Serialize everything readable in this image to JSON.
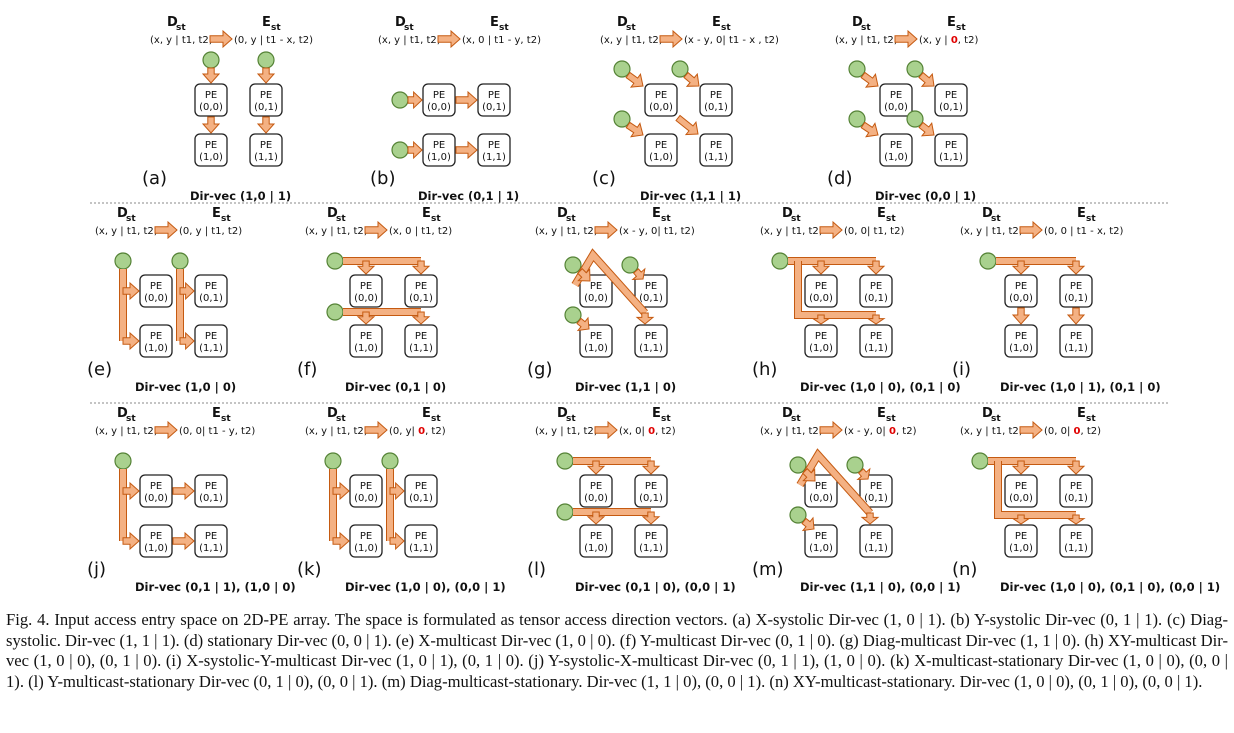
{
  "figure": {
    "labels": {
      "D": "D",
      "E": "E",
      "sub": "st",
      "pe": "PE"
    },
    "panels": [
      {
        "id": "a",
        "letter": "(a)",
        "d_formula": "(x, y | t1, t2)",
        "e_formula": "(0, y | t1 - x, t2)",
        "e_red": "",
        "e_tail": "",
        "dirvec": "Dir-vec (1,0 | 1)",
        "pe": [
          "(0,0)",
          "(0,1)",
          "(1,0)",
          "(1,1)"
        ]
      },
      {
        "id": "b",
        "letter": "(b)",
        "d_formula": "(x, y | t1, t2)",
        "e_formula": "(x, 0 | t1 - y, t2)",
        "e_red": "",
        "e_tail": "",
        "dirvec": "Dir-vec (0,1 | 1)",
        "pe": [
          "(0,0)",
          "(0,1)",
          "(1,0)",
          "(1,1)"
        ]
      },
      {
        "id": "c",
        "letter": "(c)",
        "d_formula": "(x, y | t1, t2)",
        "e_formula": "(x - y, 0| t1 - x , t2)",
        "e_red": "",
        "e_tail": "",
        "dirvec": "Dir-vec (1,1 | 1)",
        "pe": [
          "(0,0)",
          "(0,1)",
          "(1,0)",
          "(1,1)"
        ]
      },
      {
        "id": "d",
        "letter": "(d)",
        "d_formula": "(x, y | t1, t2)",
        "e_formula": "(x, y | ",
        "e_red": "0",
        "e_tail": ", t2)",
        "dirvec": "Dir-vec (0,0 | 1)",
        "pe": [
          "(0,0)",
          "(0,1)",
          "(1,0)",
          "(1,1)"
        ]
      },
      {
        "id": "e",
        "letter": "(e)",
        "d_formula": "(x, y | t1, t2)",
        "e_formula": "(0, y | t1, t2)",
        "e_red": "",
        "e_tail": "",
        "dirvec": "Dir-vec (1,0 | 0)",
        "pe": [
          "(0,0)",
          "(0,1)",
          "(1,0)",
          "(1,1)"
        ]
      },
      {
        "id": "f",
        "letter": "(f)",
        "d_formula": "(x, y | t1, t2)",
        "e_formula": "(x, 0 | t1, t2)",
        "e_red": "",
        "e_tail": "",
        "dirvec": "Dir-vec (0,1 | 0)",
        "pe": [
          "(0,0)",
          "(0,1)",
          "(1,0)",
          "(1,1)"
        ]
      },
      {
        "id": "g",
        "letter": "(g)",
        "d_formula": "(x, y | t1, t2)",
        "e_formula": "(x - y, 0| t1, t2)",
        "e_red": "",
        "e_tail": "",
        "dirvec": "Dir-vec (1,1 | 0)",
        "pe": [
          "(0,0)",
          "(0,1)",
          "(1,0)",
          "(1,1)"
        ]
      },
      {
        "id": "h",
        "letter": "(h)",
        "d_formula": "(x, y | t1, t2)",
        "e_formula": "(0, 0| t1, t2)",
        "e_red": "",
        "e_tail": "",
        "dirvec": "Dir-vec (1,0 | 0), (0,1 | 0)",
        "pe": [
          "(0,0)",
          "(0,1)",
          "(1,0)",
          "(1,1)"
        ]
      },
      {
        "id": "i",
        "letter": "(i)",
        "d_formula": "(x, y | t1, t2)",
        "e_formula": "(0, 0 | t1 - x, t2)",
        "e_red": "",
        "e_tail": "",
        "dirvec": "Dir-vec (1,0 | 1), (0,1 | 0)",
        "pe": [
          "(0,0)",
          "(0,1)",
          "(1,0)",
          "(1,1)"
        ]
      },
      {
        "id": "j",
        "letter": "(j)",
        "d_formula": "(x, y | t1, t2)",
        "e_formula": "(0, 0| t1 - y, t2)",
        "e_red": "",
        "e_tail": "",
        "dirvec": "Dir-vec (0,1 | 1), (1,0 | 0)",
        "pe": [
          "(0,0)",
          "(0,1)",
          "(1,0)",
          "(1,1)"
        ]
      },
      {
        "id": "k",
        "letter": "(k)",
        "d_formula": "(x, y | t1, t2)",
        "e_formula": "(0, y| ",
        "e_red": "0",
        "e_tail": ", t2)",
        "dirvec": "Dir-vec (1,0 | 0), (0,0 | 1)",
        "pe": [
          "(0,0)",
          "(0,1)",
          "(1,0)",
          "(1,1)"
        ]
      },
      {
        "id": "l",
        "letter": "(l)",
        "d_formula": "(x, y | t1, t2)",
        "e_formula": "(x, 0| ",
        "e_red": "0",
        "e_tail": ", t2)",
        "dirvec": "Dir-vec (0,1 | 0), (0,0 | 1)",
        "pe": [
          "(0,0)",
          "(0,1)",
          "(1,0)",
          "(1,1)"
        ]
      },
      {
        "id": "m",
        "letter": "(m)",
        "d_formula": "(x, y | t1, t2)",
        "e_formula": "(x - y, 0| ",
        "e_red": "0",
        "e_tail": ", t2)",
        "dirvec": "Dir-vec (1,1 | 0), (0,0 | 1)",
        "pe": [
          "(0,0)",
          "(0,1)",
          "(1,0)",
          "(1,1)"
        ]
      },
      {
        "id": "n",
        "letter": "(n)",
        "d_formula": "(x, y | t1, t2)",
        "e_formula": "(0, 0| ",
        "e_red": "0",
        "e_tail": ", t2)",
        "dirvec": "Dir-vec (1,0 | 0), (0,1 | 0), (0,0 | 1)",
        "pe": [
          "(0,0)",
          "(0,1)",
          "(1,0)",
          "(1,1)"
        ]
      }
    ],
    "colors": {
      "arrow_fill": "#f4b183",
      "arrow_stroke": "#c55a11",
      "circle_fill": "#a9d18e",
      "circle_stroke": "#548235",
      "red": "#e00000",
      "separator": "#888888"
    }
  },
  "caption": "Fig. 4.   Input access entry space on 2D-PE array. The space is formulated as tensor access direction vectors. (a) X-systolic Dir-vec (1, 0 | 1). (b) Y-systolic Dir-vec (0, 1 | 1). (c) Diag-systolic. Dir-vec (1, 1 | 1). (d) stationary Dir-vec (0, 0 | 1). (e) X-multicast Dir-vec (1, 0 | 0). (f) Y-multicast Dir-vec (0, 1 | 0). (g) Diag-multicast Dir-vec (1, 1 | 0). (h) XY-multicast Dir-vec (1, 0 | 0), (0, 1 | 0). (i) X-systolic-Y-multicast Dir-vec (1, 0 | 1), (0, 1 | 0). (j) Y-systolic-X-multicast Dir-vec (0, 1 | 1), (1, 0 | 0). (k) X-multicast-stationary Dir-vec (1, 0 | 0), (0, 0 | 1). (l) Y-multicast-stationary Dir-vec (0, 1 | 0), (0, 0 | 1). (m) Diag-multicast-stationary. Dir-vec (1, 1 | 0), (0, 0 | 1). (n) XY-multicast-stationary. Dir-vec (1, 0 | 0), (0, 1 | 0), (0, 0 | 1)."
}
